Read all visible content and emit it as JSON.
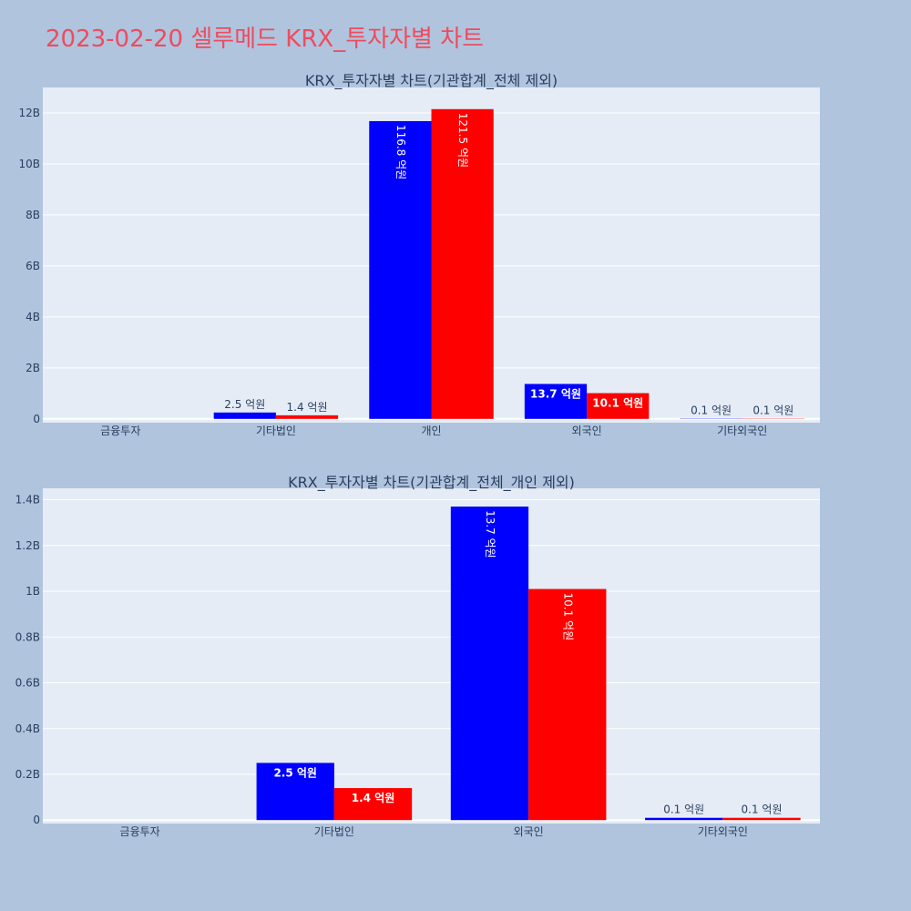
{
  "page": {
    "title": "2023-02-20 셀루메드 KRX_투자자별 차트"
  },
  "colors": {
    "background": "#b0c4de",
    "plot_background": "#e5ecf6",
    "title": "#ef4b5f",
    "series_1": "#0000ff",
    "series_2": "#ff0000"
  },
  "chart_data": [
    {
      "type": "bar",
      "title": "KRX_투자자별 차트(기관합계_전체 제외)",
      "categories": [
        "금융투자",
        "기타법인",
        "개인",
        "외국인",
        "기타외국인"
      ],
      "series": [
        {
          "values": [
            0,
            250000000,
            11680000000,
            1370000000,
            10000000
          ],
          "labels": [
            "",
            "2.5 억원",
            "116.8 억원",
            "13.7 억원",
            "0.1 억원"
          ],
          "color": "#0000ff"
        },
        {
          "values": [
            0,
            140000000,
            12150000000,
            1010000000,
            10000000
          ],
          "labels": [
            "",
            "1.4 억원",
            "121.5 억원",
            "10.1 억원",
            "0.1 억원"
          ],
          "color": "#ff0000"
        }
      ],
      "ylim": [
        -150000000,
        13000000000
      ],
      "yticks": [
        0,
        2000000000,
        4000000000,
        6000000000,
        8000000000,
        10000000000,
        12000000000
      ],
      "ytick_labels": [
        "0",
        "2B",
        "4B",
        "6B",
        "8B",
        "10B",
        "12B"
      ],
      "grid": true,
      "legend": "none"
    },
    {
      "type": "bar",
      "title": "KRX_투자자별 차트(기관합계_전체_개인 제외)",
      "categories": [
        "금융투자",
        "기타법인",
        "외국인",
        "기타외국인"
      ],
      "series": [
        {
          "values": [
            0,
            250000000,
            1370000000,
            10000000
          ],
          "labels": [
            "",
            "2.5 억원",
            "13.7 억원",
            "0.1 억원"
          ],
          "color": "#0000ff"
        },
        {
          "values": [
            0,
            140000000,
            1010000000,
            10000000
          ],
          "labels": [
            "",
            "1.4 억원",
            "10.1 억원",
            "0.1 억원"
          ],
          "color": "#ff0000"
        }
      ],
      "ylim": [
        -15000000,
        1450000000
      ],
      "yticks": [
        0,
        200000000,
        400000000,
        600000000,
        800000000,
        1000000000,
        1200000000,
        1400000000
      ],
      "ytick_labels": [
        "0",
        "0.2B",
        "0.4B",
        "0.6B",
        "0.8B",
        "1B",
        "1.2B",
        "1.4B"
      ],
      "grid": true,
      "legend": "none"
    }
  ]
}
